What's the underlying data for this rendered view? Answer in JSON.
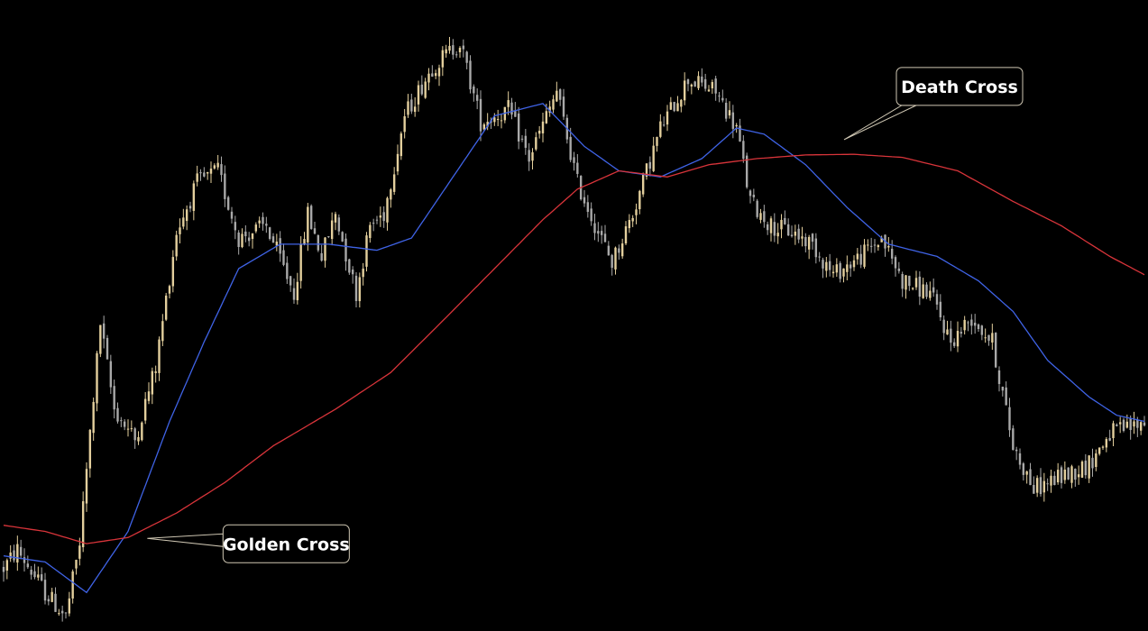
{
  "chart_data": {
    "type": "line",
    "title": "",
    "xlabel": "",
    "ylabel": "",
    "grid": false,
    "ylim": [
      0,
      100
    ],
    "colors": {
      "background": "#000000",
      "candle_up": "#e3cf9d",
      "candle_down": "#a9a9a9",
      "short_ma": "#3f63e6",
      "long_ma": "#d8343a",
      "callout_border": "#cfc7b3"
    },
    "price_keypoints": [
      {
        "x": 0,
        "y": 10
      },
      {
        "x": 4,
        "y": 13
      },
      {
        "x": 12,
        "y": 6
      },
      {
        "x": 18,
        "y": 2
      },
      {
        "x": 22,
        "y": 14
      },
      {
        "x": 28,
        "y": 50
      },
      {
        "x": 32,
        "y": 36
      },
      {
        "x": 38,
        "y": 31
      },
      {
        "x": 44,
        "y": 43
      },
      {
        "x": 50,
        "y": 65
      },
      {
        "x": 56,
        "y": 73
      },
      {
        "x": 62,
        "y": 75
      },
      {
        "x": 68,
        "y": 64
      },
      {
        "x": 76,
        "y": 66
      },
      {
        "x": 84,
        "y": 55
      },
      {
        "x": 88,
        "y": 68
      },
      {
        "x": 92,
        "y": 61
      },
      {
        "x": 96,
        "y": 68
      },
      {
        "x": 102,
        "y": 55
      },
      {
        "x": 106,
        "y": 66
      },
      {
        "x": 110,
        "y": 68
      },
      {
        "x": 116,
        "y": 84
      },
      {
        "x": 124,
        "y": 92
      },
      {
        "x": 132,
        "y": 96
      },
      {
        "x": 138,
        "y": 83
      },
      {
        "x": 146,
        "y": 85
      },
      {
        "x": 152,
        "y": 77
      },
      {
        "x": 160,
        "y": 88
      },
      {
        "x": 166,
        "y": 73
      },
      {
        "x": 172,
        "y": 65
      },
      {
        "x": 176,
        "y": 60
      },
      {
        "x": 182,
        "y": 68
      },
      {
        "x": 190,
        "y": 82
      },
      {
        "x": 198,
        "y": 90
      },
      {
        "x": 206,
        "y": 88
      },
      {
        "x": 212,
        "y": 82
      },
      {
        "x": 216,
        "y": 70
      },
      {
        "x": 222,
        "y": 66
      },
      {
        "x": 228,
        "y": 65
      },
      {
        "x": 234,
        "y": 63
      },
      {
        "x": 240,
        "y": 58
      },
      {
        "x": 248,
        "y": 61
      },
      {
        "x": 254,
        "y": 64
      },
      {
        "x": 260,
        "y": 57
      },
      {
        "x": 268,
        "y": 55
      },
      {
        "x": 274,
        "y": 47
      },
      {
        "x": 280,
        "y": 51
      },
      {
        "x": 286,
        "y": 47
      },
      {
        "x": 292,
        "y": 30
      },
      {
        "x": 298,
        "y": 23
      },
      {
        "x": 306,
        "y": 25
      },
      {
        "x": 314,
        "y": 27
      },
      {
        "x": 320,
        "y": 32
      },
      {
        "x": 326,
        "y": 33
      },
      {
        "x": 330,
        "y": 34
      }
    ],
    "series": [
      {
        "name": "",
        "role": "short moving average",
        "color": "#3f63e6",
        "points": [
          {
            "x": 0,
            "y": 12
          },
          {
            "x": 12,
            "y": 11
          },
          {
            "x": 24,
            "y": 6
          },
          {
            "x": 36,
            "y": 16
          },
          {
            "x": 48,
            "y": 34
          },
          {
            "x": 58,
            "y": 47
          },
          {
            "x": 68,
            "y": 59
          },
          {
            "x": 80,
            "y": 63
          },
          {
            "x": 94,
            "y": 63
          },
          {
            "x": 108,
            "y": 62
          },
          {
            "x": 118,
            "y": 64
          },
          {
            "x": 130,
            "y": 74
          },
          {
            "x": 142,
            "y": 84
          },
          {
            "x": 156,
            "y": 86
          },
          {
            "x": 168,
            "y": 79
          },
          {
            "x": 178,
            "y": 75
          },
          {
            "x": 190,
            "y": 74
          },
          {
            "x": 202,
            "y": 77
          },
          {
            "x": 212,
            "y": 82
          },
          {
            "x": 220,
            "y": 81
          },
          {
            "x": 232,
            "y": 76
          },
          {
            "x": 244,
            "y": 69
          },
          {
            "x": 256,
            "y": 63
          },
          {
            "x": 270,
            "y": 61
          },
          {
            "x": 282,
            "y": 57
          },
          {
            "x": 292,
            "y": 52
          },
          {
            "x": 302,
            "y": 44
          },
          {
            "x": 314,
            "y": 38
          },
          {
            "x": 322,
            "y": 35
          },
          {
            "x": 330,
            "y": 34
          }
        ]
      },
      {
        "name": "",
        "role": "long moving average",
        "color": "#d8343a",
        "points": [
          {
            "x": 0,
            "y": 17
          },
          {
            "x": 12,
            "y": 16
          },
          {
            "x": 24,
            "y": 14
          },
          {
            "x": 36,
            "y": 15
          },
          {
            "x": 50,
            "y": 19
          },
          {
            "x": 64,
            "y": 24
          },
          {
            "x": 78,
            "y": 30
          },
          {
            "x": 96,
            "y": 36
          },
          {
            "x": 112,
            "y": 42
          },
          {
            "x": 128,
            "y": 51
          },
          {
            "x": 142,
            "y": 59
          },
          {
            "x": 156,
            "y": 67
          },
          {
            "x": 166,
            "y": 72
          },
          {
            "x": 178,
            "y": 75
          },
          {
            "x": 192,
            "y": 74
          },
          {
            "x": 204,
            "y": 76
          },
          {
            "x": 218,
            "y": 77
          },
          {
            "x": 232,
            "y": 77.6
          },
          {
            "x": 246,
            "y": 77.7
          },
          {
            "x": 260,
            "y": 77.2
          },
          {
            "x": 276,
            "y": 75
          },
          {
            "x": 292,
            "y": 70
          },
          {
            "x": 306,
            "y": 66
          },
          {
            "x": 320,
            "y": 61
          },
          {
            "x": 330,
            "y": 58
          }
        ]
      }
    ],
    "annotations": [
      {
        "id": "golden",
        "text": "Golden Cross",
        "x": 40,
        "y": 15.3,
        "box_anchor": "right"
      },
      {
        "id": "death",
        "text": "Death Cross",
        "x": 240,
        "y": 77.6,
        "box_anchor": "top"
      }
    ]
  }
}
